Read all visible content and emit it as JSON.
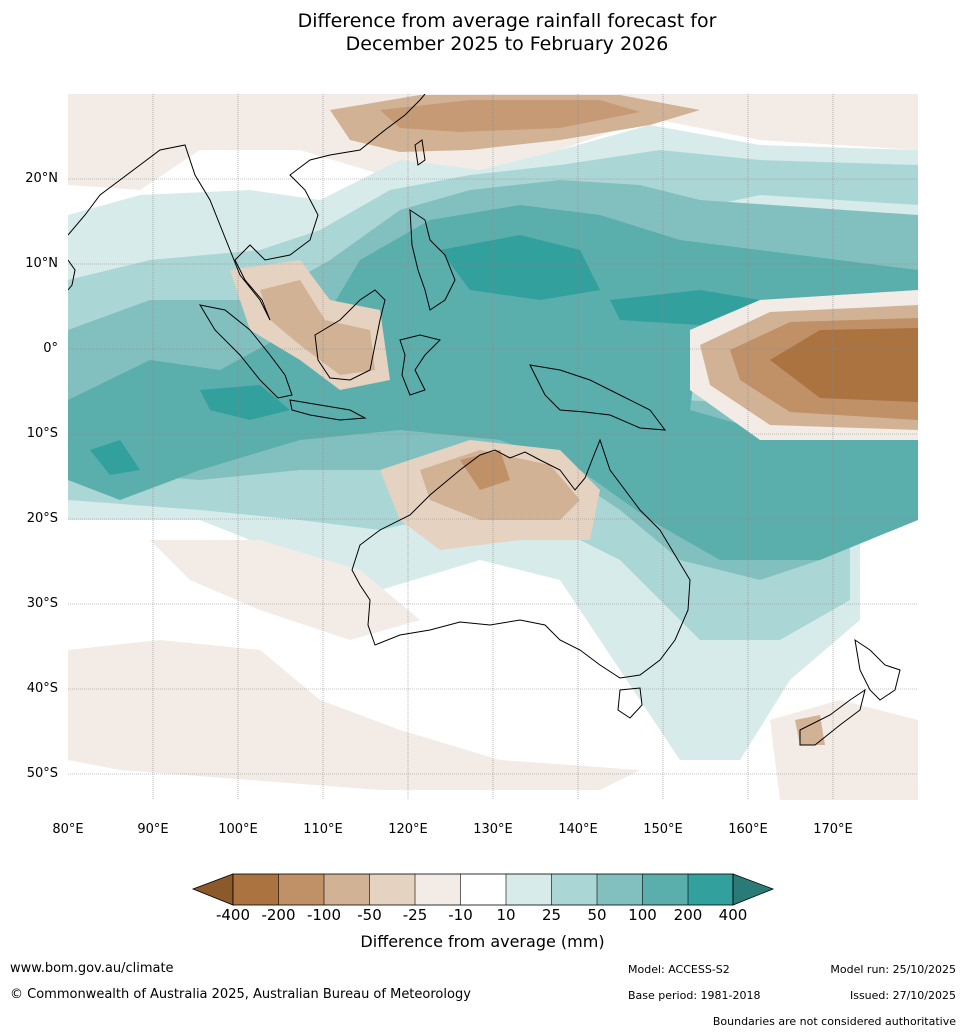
{
  "title": {
    "line1": "Difference from average rainfall forecast for",
    "line2": "December 2025 to February 2026"
  },
  "map": {
    "lat_labels": [
      "20°N",
      "10°N",
      "0°",
      "10°S",
      "20°S",
      "30°S",
      "40°S",
      "50°S"
    ],
    "lon_labels": [
      "80°E",
      "90°E",
      "100°E",
      "110°E",
      "120°E",
      "130°E",
      "140°E",
      "150°E",
      "160°E",
      "170°E"
    ]
  },
  "colorbar": {
    "title": "Difference from average (mm)",
    "tick_labels": [
      "-400",
      "-200",
      "-100",
      "-50",
      "-25",
      "-10",
      "10",
      "25",
      "50",
      "100",
      "200",
      "400"
    ],
    "colors": [
      "#8c5a2a",
      "#aa7340",
      "#c09066",
      "#d2b294",
      "#e6d2c0",
      "#f3ebe5",
      "#ffffff",
      "#d6ebea",
      "#aad7d6",
      "#82c0bf",
      "#5aaeac",
      "#32a09d",
      "#2a7a78"
    ]
  },
  "footer": {
    "website": "www.bom.gov.au/climate",
    "copyright": "© Commonwealth of Australia 2025, Australian Bureau of Meteorology",
    "model": "Model: ACCESS-S2",
    "base_period": "Base period: 1981-2018",
    "model_run": "Model run: 25/10/2025",
    "issued": "Issued: 27/10/2025",
    "disclaimer": "Boundaries are not considered authoritative"
  }
}
